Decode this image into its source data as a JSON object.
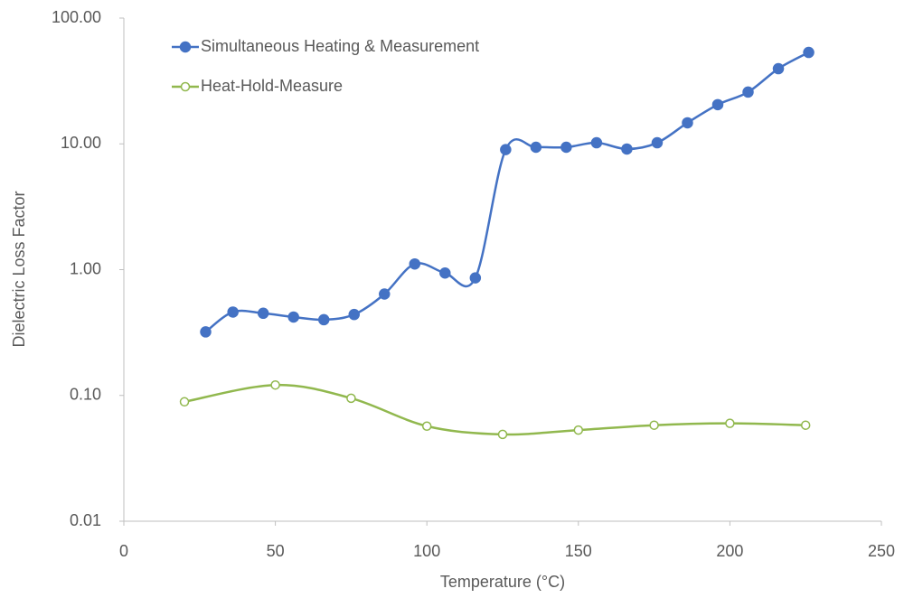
{
  "chart_data": {
    "type": "scatter-smooth",
    "x_label": "Temperature (°C)",
    "y_label": "Dielectric Loss Factor",
    "xlim": [
      0,
      250
    ],
    "xticks": [
      0,
      50,
      100,
      150,
      200,
      250
    ],
    "ylim": [
      0.01,
      100
    ],
    "log_y": true,
    "grid": false,
    "legend": "top-left",
    "yticks": [
      {
        "value": 0.01,
        "label": "0.01"
      },
      {
        "value": 0.1,
        "label": "0.10"
      },
      {
        "value": 1,
        "label": "1.00"
      },
      {
        "value": 10,
        "label": "10.00"
      },
      {
        "value": 100,
        "label": "100.00"
      }
    ],
    "series": [
      {
        "name": "Simultaneous Heating & Measurement",
        "color": "#4472c4",
        "marker": "filled",
        "x": [
          27,
          36,
          46,
          56,
          66,
          76,
          86,
          96,
          106,
          116,
          126,
          136,
          146,
          156,
          166,
          176,
          186,
          196,
          206,
          216,
          226
        ],
        "values": [
          0.32,
          0.46,
          0.45,
          0.42,
          0.4,
          0.44,
          0.64,
          1.11,
          0.94,
          0.86,
          9.0,
          9.4,
          9.4,
          10.2,
          9.1,
          10.2,
          14.7,
          20.5,
          25.8,
          39.6,
          53.3
        ]
      },
      {
        "name": "Heat-Hold-Measure",
        "color": "#91b84e",
        "marker": "open",
        "x": [
          20,
          50,
          75,
          100,
          125,
          150,
          175,
          200,
          225
        ],
        "values": [
          0.089,
          0.121,
          0.095,
          0.057,
          0.049,
          0.053,
          0.058,
          0.06,
          0.058
        ]
      }
    ]
  }
}
